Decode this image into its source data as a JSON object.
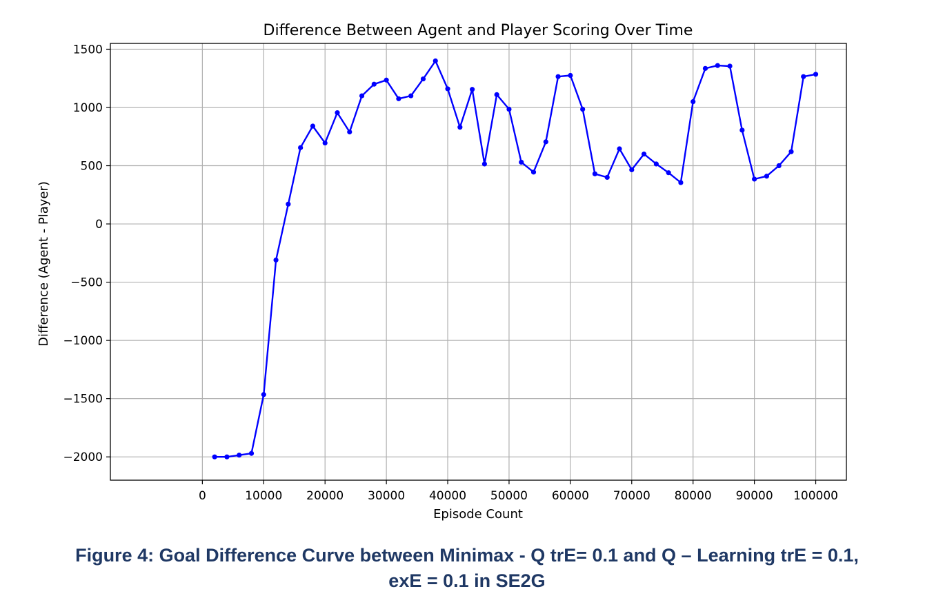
{
  "chart_data": {
    "type": "line",
    "title": "Difference Between Agent and Player Scoring Over Time",
    "xlabel": "Episode Count",
    "ylabel": "Difference (Agent - Player)",
    "xlim": [
      -15000,
      105000
    ],
    "ylim": [
      -2200,
      1550
    ],
    "xticks": [
      0,
      10000,
      20000,
      30000,
      40000,
      50000,
      60000,
      70000,
      80000,
      90000,
      100000
    ],
    "yticks": [
      -2000,
      -1500,
      -1000,
      -500,
      0,
      500,
      1000,
      1500
    ],
    "xtick_labels": [
      "0",
      "10000",
      "20000",
      "30000",
      "40000",
      "50000",
      "60000",
      "70000",
      "80000",
      "90000",
      "100000"
    ],
    "ytick_labels": [
      "−2000",
      "−1500",
      "−1000",
      "−500",
      "0",
      "500",
      "1000",
      "1500"
    ],
    "grid": true,
    "series": [
      {
        "color": "#0000ff",
        "marker": "circle",
        "x": [
          2000,
          4000,
          6000,
          8000,
          10000,
          12000,
          14000,
          16000,
          18000,
          20000,
          22000,
          24000,
          26000,
          28000,
          30000,
          32000,
          34000,
          36000,
          38000,
          40000,
          42000,
          44000,
          46000,
          48000,
          50000,
          52000,
          54000,
          56000,
          58000,
          60000,
          62000,
          64000,
          66000,
          68000,
          70000,
          72000,
          74000,
          76000,
          78000,
          80000,
          82000,
          84000,
          86000,
          88000,
          90000,
          92000,
          94000,
          96000,
          98000,
          100000
        ],
        "values": [
          -2000,
          -2000,
          -1985,
          -1970,
          -1465,
          -310,
          170,
          655,
          840,
          695,
          955,
          790,
          1100,
          1200,
          1235,
          1075,
          1100,
          1245,
          1400,
          1160,
          830,
          1155,
          515,
          1110,
          985,
          530,
          445,
          705,
          1265,
          1275,
          985,
          430,
          400,
          645,
          465,
          600,
          515,
          440,
          355,
          1050,
          1335,
          1360,
          1355,
          805,
          385,
          410,
          500,
          620,
          1265,
          1285
        ]
      }
    ]
  },
  "caption": {
    "line1": "Figure 4: Goal Difference Curve between Minimax - Q trE= 0.1 and Q – Learning trE = 0.1,",
    "line2": "exE = 0.1 in SE2G"
  }
}
